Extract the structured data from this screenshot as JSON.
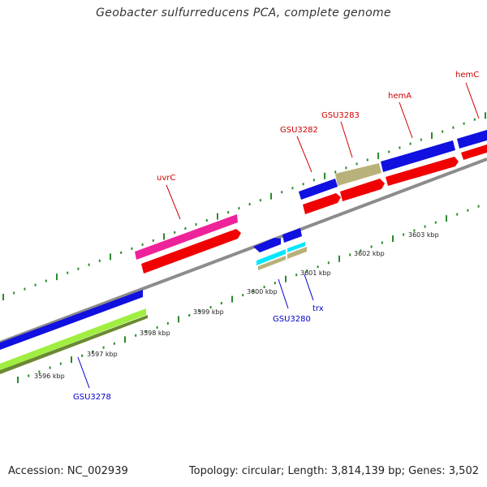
{
  "title": "Geobacter sulfurreducens PCA, complete genome",
  "footer": {
    "accession": "Accession: NC_002939",
    "summary": "Topology: circular; Length: 3,814,139 bp; Genes: 3,502"
  },
  "colors": {
    "backbone": "#8c8c8c",
    "tick": "#2a8a2a",
    "forward_label": "#cc0000",
    "reverse_label": "#0000cc",
    "blue": "#1010e0",
    "red": "#f00000",
    "magenta": "#ee2299",
    "khaki": "#b8b27a",
    "cyan": "#00e8ff",
    "lime": "#a0ee40",
    "olive": "#6a8a30"
  },
  "scale_labels": [
    "3596 kbp",
    "3597 kbp",
    "3598 kbp",
    "3599 kbp",
    "3600 kbp",
    "3601 kbp",
    "3602 kbp",
    "3603 kbp"
  ],
  "gene_labels": {
    "forward": [
      "uvrC",
      "GSU3282",
      "GSU3283",
      "hemA",
      "hemC"
    ],
    "reverse": [
      "GSU3278",
      "GSU3280",
      "trx"
    ]
  }
}
